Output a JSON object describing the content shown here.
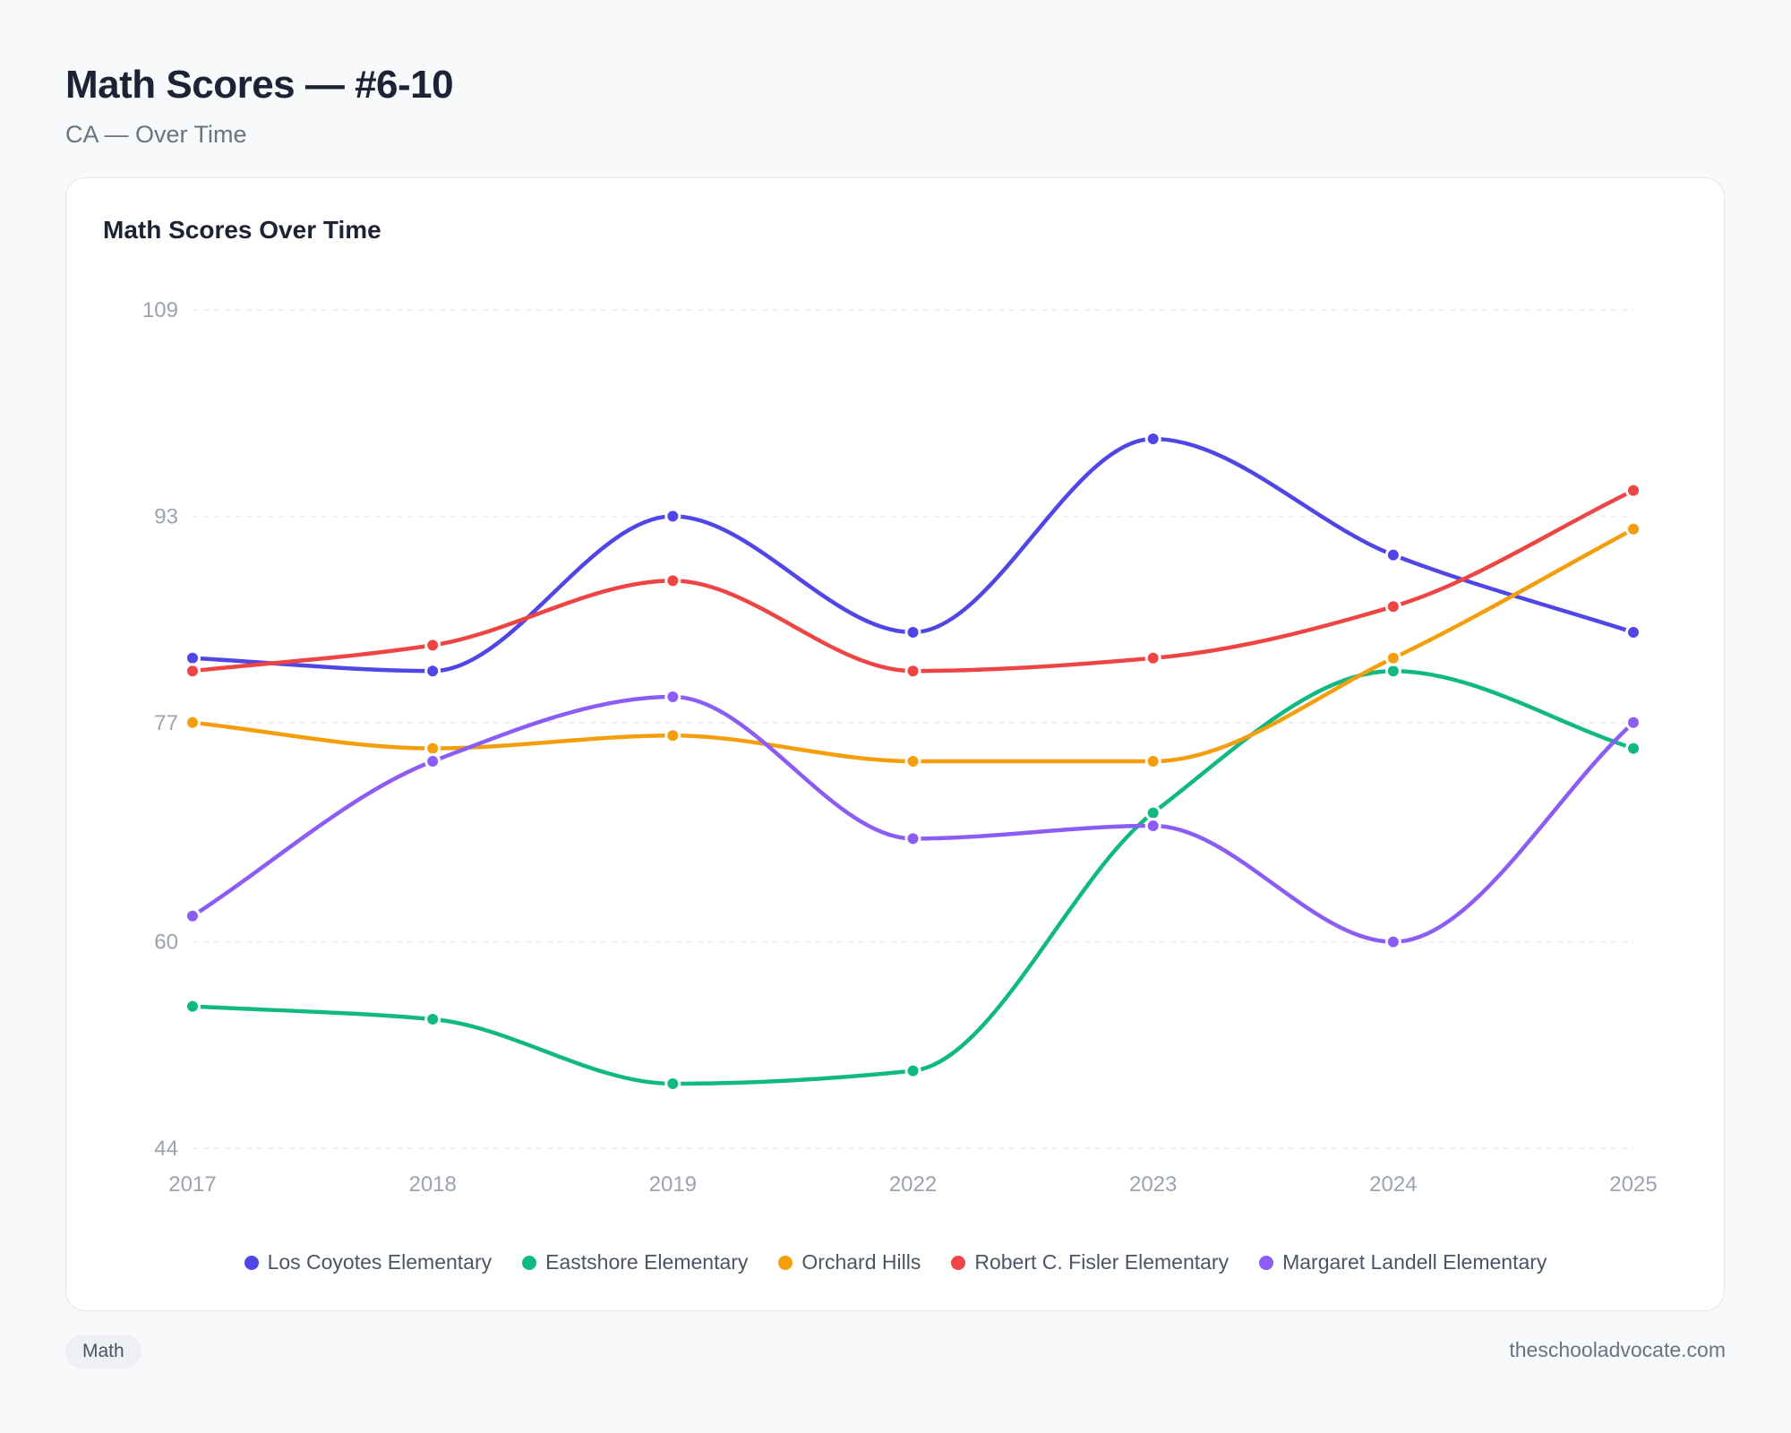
{
  "header": {
    "title": "Math Scores — #6-10",
    "subtitle": "CA — Over Time"
  },
  "footer": {
    "tag": "Math",
    "site": "theschooladvocate.com"
  },
  "chart_data": {
    "type": "line",
    "title": "Math Scores Over Time",
    "xlabel": "",
    "ylabel": "",
    "categories": [
      "2017",
      "2018",
      "2019",
      "2022",
      "2023",
      "2024",
      "2025"
    ],
    "y_ticks": [
      109,
      93,
      77,
      60,
      44
    ],
    "ylim": [
      44,
      109
    ],
    "grid": "horizontal dashed",
    "legend_position": "bottom",
    "series": [
      {
        "name": "Los Coyotes Elementary",
        "color": "#4f46e5",
        "values": [
          82,
          81,
          93,
          84,
          99,
          90,
          84
        ]
      },
      {
        "name": "Eastshore Elementary",
        "color": "#10b981",
        "values": [
          55,
          54,
          49,
          50,
          70,
          81,
          75
        ]
      },
      {
        "name": "Orchard Hills",
        "color": "#f59e0b",
        "values": [
          77,
          75,
          76,
          74,
          74,
          82,
          92
        ]
      },
      {
        "name": "Robert C. Fisler Elementary",
        "color": "#ef4444",
        "values": [
          81,
          83,
          88,
          81,
          82,
          86,
          95
        ]
      },
      {
        "name": "Margaret Landell Elementary",
        "color": "#8b5cf6",
        "values": [
          62,
          74,
          79,
          68,
          69,
          60,
          77
        ]
      }
    ]
  }
}
